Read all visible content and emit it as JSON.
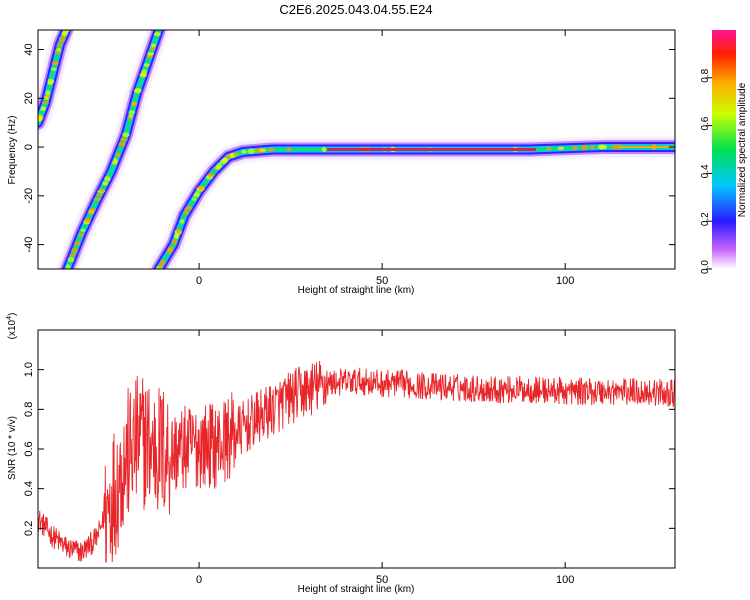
{
  "title": "C2E6.2025.043.04.55.E24",
  "colors": {
    "snr_line": "#e8262a",
    "ridge_center": "#d8204e"
  },
  "chart_data": [
    {
      "type": "heatmap",
      "xlabel": "Height of straight line (km)",
      "ylabel": "Frequency (Hz)",
      "xlim": [
        -44,
        130
      ],
      "ylim": [
        -50,
        48
      ],
      "xticks": [
        0,
        50,
        100
      ],
      "yticks": [
        40,
        20,
        0,
        -20,
        -40
      ],
      "colormap": "rainbow (violet-blue-cyan-green-yellow-red-magenta)",
      "colorbar": {
        "label": "Normalized spectral amplitude",
        "range": [
          0,
          1
        ],
        "ticks": [
          "0.0",
          "0.2",
          "0.4",
          "0.6",
          "0.8"
        ]
      },
      "ridges": [
        {
          "name": "left-ridge",
          "points": [
            [
              -44,
              10
            ],
            [
              -42,
              18
            ],
            [
              -40,
              30
            ],
            [
              -38,
              42
            ],
            [
              -36,
              49
            ]
          ]
        },
        {
          "name": "middle-ridge",
          "points": [
            [
              -36,
              -50
            ],
            [
              -32,
              -35
            ],
            [
              -28,
              -22
            ],
            [
              -24,
              -10
            ],
            [
              -20,
              5
            ],
            [
              -17,
              22
            ],
            [
              -14,
              35
            ],
            [
              -11,
              48
            ]
          ]
        },
        {
          "name": "right-ridge",
          "points": [
            [
              -11,
              -50
            ],
            [
              -7,
              -40
            ],
            [
              -4,
              -28
            ],
            [
              0,
              -18
            ],
            [
              4,
              -10
            ],
            [
              8,
              -4
            ],
            [
              12,
              -2
            ],
            [
              20,
              -1
            ],
            [
              50,
              -1
            ],
            [
              90,
              -1
            ],
            [
              110,
              0
            ],
            [
              130,
              0
            ]
          ]
        }
      ]
    },
    {
      "type": "line",
      "xlabel": "Height of straight line (km)",
      "ylabel": "SNR (10 * v/v)",
      "yscale_label": "(x10",
      "yscale_exp": "4",
      "yscale_close": ")",
      "xlim": [
        -44,
        130
      ],
      "ylim": [
        0,
        1.2
      ],
      "xticks": [
        0,
        50,
        100
      ],
      "yticks": [
        "0.2",
        "0.4",
        "0.6",
        "0.8",
        "1.0"
      ],
      "series": [
        {
          "x": [
            -44,
            -40,
            -36,
            -32,
            -28,
            -24,
            -20,
            -16,
            -12,
            -8,
            -4,
            0,
            5,
            10,
            15,
            20,
            25,
            30,
            35,
            40,
            45,
            50,
            55,
            60,
            70,
            80,
            90,
            100,
            110,
            120,
            130
          ],
          "y": [
            0.25,
            0.16,
            0.1,
            0.08,
            0.15,
            0.35,
            0.55,
            0.65,
            0.6,
            0.58,
            0.6,
            0.62,
            0.62,
            0.68,
            0.74,
            0.8,
            0.86,
            0.9,
            0.93,
            0.94,
            0.94,
            0.93,
            0.93,
            0.92,
            0.91,
            0.9,
            0.9,
            0.89,
            0.89,
            0.89,
            0.88
          ]
        }
      ]
    }
  ]
}
